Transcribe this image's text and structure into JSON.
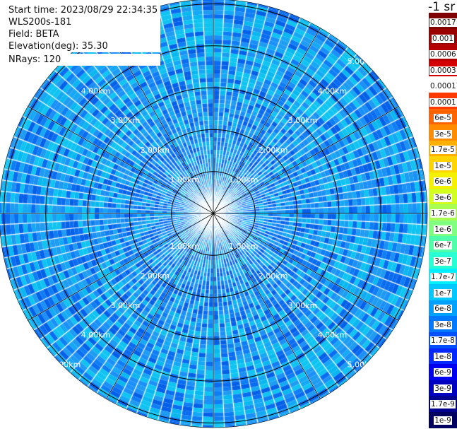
{
  "info": {
    "start_time": "Start time: 2023/08/29 22:34:35",
    "instrument": "WLS200s-181",
    "field": "Field: BETA",
    "elevation": "Elevation(deg): 35.30",
    "nrays": "NRays: 120"
  },
  "chart_data": {
    "type": "ppi-polar-heatmap",
    "n_rays": 120,
    "range_rings": [
      "1.00km",
      "2.00km",
      "3.00km",
      "4.00km",
      "5.00km"
    ],
    "range_ring_values_km": [
      1,
      2,
      3,
      4,
      5
    ],
    "colorbar": {
      "unit": "-1 sr",
      "scale": "log",
      "labels": [
        "0.0017",
        "0.001",
        "0.0006",
        "0.0003",
        "0.00017",
        "0.0001",
        "6e-5",
        "3e-5",
        "1.7e-5",
        "1e-5",
        "6e-6",
        "3e-6",
        "1.7e-6",
        "1e-6",
        "6e-7",
        "3e-7",
        "1.7e-7",
        "1e-7",
        "6e-8",
        "3e-8",
        "1.7e-8",
        "1e-8",
        "6e-9",
        "3e-9",
        "1.7e-9",
        "1e-9"
      ],
      "colors": [
        "#7f0000",
        "#9a0000",
        "#b50000",
        "#d40000",
        "#f00e00",
        "#ff3a00",
        "#ff6400",
        "#ff8c00",
        "#ffb000",
        "#ffd400",
        "#f4f000",
        "#d2ff20",
        "#a8ff50",
        "#80ff80",
        "#50ffaa",
        "#28ffd4",
        "#00f0ff",
        "#00c8ff",
        "#00a0ff",
        "#0078ff",
        "#0050ff",
        "#0028ff",
        "#0000f0",
        "#0000c0",
        "#000090",
        "#000060"
      ]
    },
    "dominant_values": "approx 3e-8 to 1.7e-7"
  }
}
